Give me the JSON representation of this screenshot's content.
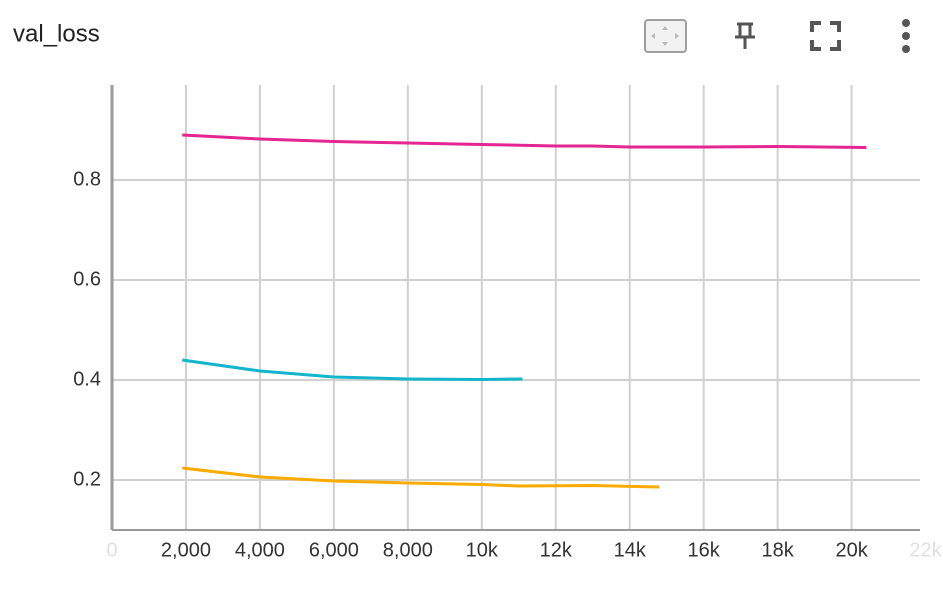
{
  "chart_data": {
    "type": "line",
    "title": "val_loss",
    "xlim": [
      0,
      21850
    ],
    "ylim": [
      0.1,
      0.99
    ],
    "xticks": [
      0,
      {
        "value": 2000,
        "label": "2,000"
      },
      {
        "value": 4000,
        "label": "4,000"
      },
      {
        "value": 6000,
        "label": "6,000"
      },
      {
        "value": 8000,
        "label": "8,000"
      },
      {
        "value": 10000,
        "label": "10k"
      },
      {
        "value": 12000,
        "label": "12k"
      },
      {
        "value": 14000,
        "label": "14k"
      },
      {
        "value": 16000,
        "label": "16k"
      },
      {
        "value": 18000,
        "label": "18k"
      },
      {
        "value": 20000,
        "label": "20k"
      },
      {
        "value": 22000,
        "label": "22k"
      }
    ],
    "yticks": [
      0.2,
      0.4,
      0.6,
      0.8
    ],
    "grid": true,
    "series": [
      {
        "color": "#e52592",
        "x": [
          1900,
          4000,
          6000,
          8000,
          10000,
          12000,
          13000,
          14000,
          16000,
          18000,
          20400
        ],
        "values": [
          0.89,
          0.882,
          0.877,
          0.874,
          0.871,
          0.868,
          0.868,
          0.866,
          0.866,
          0.867,
          0.865
        ]
      },
      {
        "color": "#12b5cb",
        "x": [
          1900,
          4000,
          6000,
          8000,
          10000,
          11100
        ],
        "values": [
          0.44,
          0.418,
          0.406,
          0.402,
          0.401,
          0.402
        ]
      },
      {
        "color": "#f9ab00",
        "x": [
          1900,
          4000,
          6000,
          8000,
          10000,
          11000,
          13000,
          14800
        ],
        "values": [
          0.224,
          0.206,
          0.198,
          0.194,
          0.191,
          0.188,
          0.189,
          0.186
        ]
      }
    ]
  }
}
